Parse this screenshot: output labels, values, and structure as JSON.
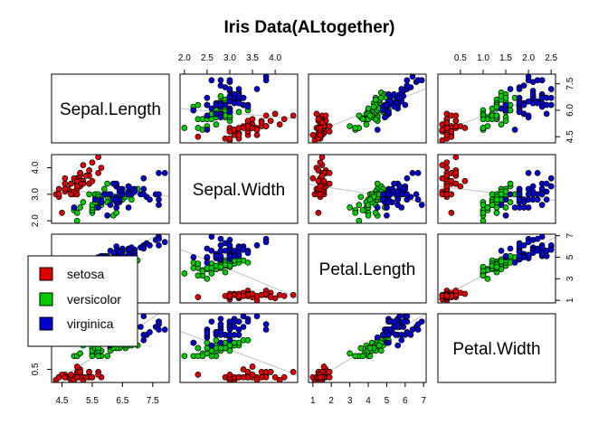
{
  "chart_data": {
    "type": "scatter",
    "title": "Iris Data(ALtogether)",
    "variables": [
      "Sepal.Length",
      "Sepal.Width",
      "Petal.Length",
      "Petal.Width"
    ],
    "ranges": {
      "Sepal.Length": [
        4.3,
        7.9
      ],
      "Sepal.Width": [
        2.0,
        4.4
      ],
      "Petal.Length": [
        1.0,
        6.9
      ],
      "Petal.Width": [
        0.1,
        2.5
      ]
    },
    "ticks": {
      "Sepal.Length": [
        "4.5",
        "5.5",
        "6.5",
        "7.5"
      ],
      "Sepal.Width": [
        "2.0",
        "2.5",
        "3.0",
        "3.5",
        "4.0"
      ],
      "Petal.Length": [
        "1",
        "2",
        "3",
        "4",
        "5",
        "6",
        "7"
      ],
      "Petal.Width": [
        "0.5",
        "1.0",
        "1.5",
        "2.0",
        "2.5"
      ]
    },
    "y_ticks": {
      "Sepal.Length": [
        "4.5",
        "6.0",
        "7.5"
      ],
      "Sepal.Width": [
        "2.0",
        "3.0",
        "4.0"
      ],
      "Petal.Length": [
        "1",
        "3",
        "5",
        "7"
      ],
      "Petal.Width": [
        "0.5"
      ]
    },
    "legend": {
      "placement": "left-middle",
      "entries": [
        "setosa",
        "versicolor",
        "virginica"
      ]
    },
    "colors": {
      "setosa": "#dd0000",
      "versicolor": "#00cc00",
      "virginica": "#0000cc",
      "regression": "#c0c0c0"
    },
    "series": [
      {
        "name": "setosa",
        "columns": [
          "Sepal.Length",
          "Sepal.Width",
          "Petal.Length",
          "Petal.Width"
        ],
        "values": [
          [
            5.1,
            3.5,
            1.4,
            0.2
          ],
          [
            4.9,
            3.0,
            1.4,
            0.2
          ],
          [
            4.7,
            3.2,
            1.3,
            0.2
          ],
          [
            4.6,
            3.1,
            1.5,
            0.2
          ],
          [
            5.0,
            3.6,
            1.4,
            0.2
          ],
          [
            5.4,
            3.9,
            1.7,
            0.4
          ],
          [
            4.6,
            3.4,
            1.4,
            0.3
          ],
          [
            5.0,
            3.4,
            1.5,
            0.2
          ],
          [
            4.4,
            2.9,
            1.4,
            0.2
          ],
          [
            4.9,
            3.1,
            1.5,
            0.1
          ],
          [
            5.4,
            3.7,
            1.5,
            0.2
          ],
          [
            4.8,
            3.4,
            1.6,
            0.2
          ],
          [
            4.8,
            3.0,
            1.4,
            0.1
          ],
          [
            4.3,
            3.0,
            1.1,
            0.1
          ],
          [
            5.8,
            4.0,
            1.2,
            0.2
          ],
          [
            5.7,
            4.4,
            1.5,
            0.4
          ],
          [
            5.4,
            3.9,
            1.3,
            0.4
          ],
          [
            5.1,
            3.5,
            1.4,
            0.3
          ],
          [
            5.7,
            3.8,
            1.7,
            0.3
          ],
          [
            5.1,
            3.8,
            1.5,
            0.3
          ],
          [
            5.4,
            3.4,
            1.7,
            0.2
          ],
          [
            5.1,
            3.7,
            1.5,
            0.4
          ],
          [
            4.6,
            3.6,
            1.0,
            0.2
          ],
          [
            5.1,
            3.3,
            1.7,
            0.5
          ],
          [
            4.8,
            3.4,
            1.9,
            0.2
          ],
          [
            5.0,
            3.0,
            1.6,
            0.2
          ],
          [
            5.0,
            3.4,
            1.6,
            0.4
          ],
          [
            5.2,
            3.5,
            1.5,
            0.2
          ],
          [
            5.2,
            3.4,
            1.4,
            0.2
          ],
          [
            4.7,
            3.2,
            1.6,
            0.2
          ],
          [
            4.8,
            3.1,
            1.6,
            0.2
          ],
          [
            5.4,
            3.4,
            1.5,
            0.4
          ],
          [
            5.2,
            4.1,
            1.5,
            0.1
          ],
          [
            5.5,
            4.2,
            1.4,
            0.2
          ],
          [
            4.9,
            3.1,
            1.5,
            0.2
          ],
          [
            5.0,
            3.2,
            1.2,
            0.2
          ],
          [
            5.5,
            3.5,
            1.3,
            0.2
          ],
          [
            4.9,
            3.6,
            1.4,
            0.1
          ],
          [
            4.4,
            3.0,
            1.3,
            0.2
          ],
          [
            5.1,
            3.4,
            1.5,
            0.2
          ],
          [
            5.0,
            3.5,
            1.3,
            0.3
          ],
          [
            4.5,
            2.3,
            1.3,
            0.3
          ],
          [
            4.4,
            3.2,
            1.3,
            0.2
          ],
          [
            5.0,
            3.5,
            1.6,
            0.6
          ],
          [
            5.1,
            3.8,
            1.9,
            0.4
          ],
          [
            4.8,
            3.0,
            1.4,
            0.3
          ],
          [
            5.1,
            3.8,
            1.6,
            0.2
          ],
          [
            4.6,
            3.2,
            1.4,
            0.2
          ],
          [
            5.3,
            3.7,
            1.5,
            0.2
          ],
          [
            5.0,
            3.3,
            1.4,
            0.2
          ]
        ]
      },
      {
        "name": "versicolor",
        "columns": [
          "Sepal.Length",
          "Sepal.Width",
          "Petal.Length",
          "Petal.Width"
        ],
        "values": [
          [
            7.0,
            3.2,
            4.7,
            1.4
          ],
          [
            6.4,
            3.2,
            4.5,
            1.5
          ],
          [
            6.9,
            3.1,
            4.9,
            1.5
          ],
          [
            5.5,
            2.3,
            4.0,
            1.3
          ],
          [
            6.5,
            2.8,
            4.6,
            1.5
          ],
          [
            5.7,
            2.8,
            4.5,
            1.3
          ],
          [
            6.3,
            3.3,
            4.7,
            1.6
          ],
          [
            4.9,
            2.4,
            3.3,
            1.0
          ],
          [
            6.6,
            2.9,
            4.6,
            1.3
          ],
          [
            5.2,
            2.7,
            3.9,
            1.4
          ],
          [
            5.0,
            2.0,
            3.5,
            1.0
          ],
          [
            5.9,
            3.0,
            4.2,
            1.5
          ],
          [
            6.0,
            2.2,
            4.0,
            1.0
          ],
          [
            6.1,
            2.9,
            4.7,
            1.4
          ],
          [
            5.6,
            2.9,
            3.6,
            1.3
          ],
          [
            6.7,
            3.1,
            4.4,
            1.4
          ],
          [
            5.6,
            3.0,
            4.5,
            1.5
          ],
          [
            5.8,
            2.7,
            4.1,
            1.0
          ],
          [
            6.2,
            2.2,
            4.5,
            1.5
          ],
          [
            5.6,
            2.5,
            3.9,
            1.1
          ],
          [
            5.9,
            3.2,
            4.8,
            1.8
          ],
          [
            6.1,
            2.8,
            4.0,
            1.3
          ],
          [
            6.3,
            2.5,
            4.9,
            1.5
          ],
          [
            6.1,
            2.8,
            4.7,
            1.2
          ],
          [
            6.4,
            2.9,
            4.3,
            1.3
          ],
          [
            6.6,
            3.0,
            4.4,
            1.4
          ],
          [
            6.8,
            2.8,
            4.8,
            1.4
          ],
          [
            6.7,
            3.0,
            5.0,
            1.7
          ],
          [
            6.0,
            2.9,
            4.5,
            1.5
          ],
          [
            5.7,
            2.6,
            3.5,
            1.0
          ],
          [
            5.5,
            2.4,
            3.8,
            1.1
          ],
          [
            5.5,
            2.4,
            3.7,
            1.0
          ],
          [
            5.8,
            2.7,
            3.9,
            1.2
          ],
          [
            6.0,
            2.7,
            5.1,
            1.6
          ],
          [
            5.4,
            3.0,
            4.5,
            1.5
          ],
          [
            6.0,
            3.4,
            4.5,
            1.6
          ],
          [
            6.7,
            3.1,
            4.7,
            1.5
          ],
          [
            6.3,
            2.3,
            4.4,
            1.3
          ],
          [
            5.6,
            3.0,
            4.1,
            1.3
          ],
          [
            5.5,
            2.5,
            4.0,
            1.3
          ],
          [
            5.5,
            2.6,
            4.4,
            1.2
          ],
          [
            6.1,
            3.0,
            4.6,
            1.4
          ],
          [
            5.8,
            2.6,
            4.0,
            1.2
          ],
          [
            5.0,
            2.3,
            3.3,
            1.0
          ],
          [
            5.6,
            2.7,
            4.2,
            1.3
          ],
          [
            5.7,
            3.0,
            4.2,
            1.2
          ],
          [
            5.7,
            2.9,
            4.2,
            1.3
          ],
          [
            6.2,
            2.9,
            4.3,
            1.3
          ],
          [
            5.1,
            2.5,
            3.0,
            1.1
          ],
          [
            5.7,
            2.8,
            4.1,
            1.3
          ]
        ]
      },
      {
        "name": "virginica",
        "columns": [
          "Sepal.Length",
          "Sepal.Width",
          "Petal.Length",
          "Petal.Width"
        ],
        "values": [
          [
            6.3,
            3.3,
            6.0,
            2.5
          ],
          [
            5.8,
            2.7,
            5.1,
            1.9
          ],
          [
            7.1,
            3.0,
            5.9,
            2.1
          ],
          [
            6.3,
            2.9,
            5.6,
            1.8
          ],
          [
            6.5,
            3.0,
            5.8,
            2.2
          ],
          [
            7.6,
            3.0,
            6.6,
            2.1
          ],
          [
            4.9,
            2.5,
            4.5,
            1.7
          ],
          [
            7.3,
            2.9,
            6.3,
            1.8
          ],
          [
            6.7,
            2.5,
            5.8,
            1.8
          ],
          [
            7.2,
            3.6,
            6.1,
            2.5
          ],
          [
            6.5,
            3.2,
            5.1,
            2.0
          ],
          [
            6.4,
            2.7,
            5.3,
            1.9
          ],
          [
            6.8,
            3.0,
            5.5,
            2.1
          ],
          [
            5.7,
            2.5,
            5.0,
            2.0
          ],
          [
            5.8,
            2.8,
            5.1,
            2.4
          ],
          [
            6.4,
            3.2,
            5.3,
            2.3
          ],
          [
            6.5,
            3.0,
            5.5,
            1.8
          ],
          [
            7.7,
            3.8,
            6.7,
            2.2
          ],
          [
            7.7,
            2.6,
            6.9,
            2.3
          ],
          [
            6.0,
            2.2,
            5.0,
            1.5
          ],
          [
            6.9,
            3.2,
            5.7,
            2.3
          ],
          [
            5.6,
            2.8,
            4.9,
            2.0
          ],
          [
            7.7,
            2.8,
            6.7,
            2.0
          ],
          [
            6.3,
            2.7,
            4.9,
            1.8
          ],
          [
            6.7,
            3.3,
            5.7,
            2.1
          ],
          [
            7.2,
            3.2,
            6.0,
            1.8
          ],
          [
            6.2,
            2.8,
            4.8,
            1.8
          ],
          [
            6.1,
            3.0,
            4.9,
            1.8
          ],
          [
            6.4,
            2.8,
            5.6,
            2.1
          ],
          [
            7.2,
            3.0,
            5.8,
            1.6
          ],
          [
            7.4,
            2.8,
            6.1,
            1.9
          ],
          [
            7.9,
            3.8,
            6.4,
            2.0
          ],
          [
            6.4,
            2.8,
            5.6,
            2.2
          ],
          [
            6.3,
            2.8,
            5.1,
            1.5
          ],
          [
            6.1,
            2.6,
            5.6,
            1.4
          ],
          [
            7.7,
            3.0,
            6.1,
            2.3
          ],
          [
            6.3,
            3.4,
            5.6,
            2.4
          ],
          [
            6.4,
            3.1,
            5.5,
            1.8
          ],
          [
            6.0,
            3.0,
            4.8,
            1.8
          ],
          [
            6.9,
            3.1,
            5.4,
            2.1
          ],
          [
            6.7,
            3.1,
            5.6,
            2.4
          ],
          [
            6.9,
            3.1,
            5.1,
            2.3
          ],
          [
            5.8,
            2.7,
            5.1,
            1.9
          ],
          [
            6.8,
            3.2,
            5.9,
            2.3
          ],
          [
            6.7,
            3.3,
            5.7,
            2.5
          ],
          [
            6.7,
            3.0,
            5.2,
            2.3
          ],
          [
            6.3,
            2.5,
            5.0,
            1.9
          ],
          [
            6.5,
            3.0,
            5.2,
            2.0
          ],
          [
            6.2,
            3.4,
            5.4,
            2.3
          ],
          [
            5.9,
            3.0,
            5.1,
            1.8
          ]
        ]
      }
    ]
  }
}
